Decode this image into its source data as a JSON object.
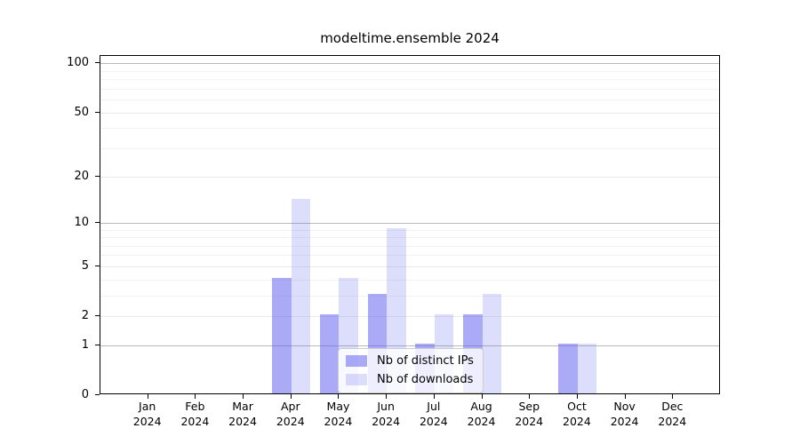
{
  "title": "modeltime.ensemble 2024",
  "colors": {
    "bar_base": "#6464f0",
    "ips_fill": "rgba(100,100,240,0.55)",
    "downloads_fill": "rgba(100,100,240,0.22)",
    "grid_major": "#b9b9b9",
    "grid_sub": "#e9e9e9",
    "grid_minor": "#f2f2f2",
    "spine": "#000000",
    "legend_border": "#cccccc"
  },
  "legend": {
    "items": [
      {
        "label": "Nb of distinct IPs",
        "series": "ips"
      },
      {
        "label": "Nb of downloads",
        "series": "downloads"
      }
    ]
  },
  "chart_data": {
    "type": "bar",
    "title": "modeltime.ensemble 2024",
    "categories": [
      "Jan 2024",
      "Feb 2024",
      "Mar 2024",
      "Apr 2024",
      "May 2024",
      "Jun 2024",
      "Jul 2024",
      "Aug 2024",
      "Sep 2024",
      "Oct 2024",
      "Nov 2024",
      "Dec 2024"
    ],
    "x_ticks": [
      {
        "label": "Jan",
        "year": "2024"
      },
      {
        "label": "Feb",
        "year": "2024"
      },
      {
        "label": "Mar",
        "year": "2024"
      },
      {
        "label": "Apr",
        "year": "2024"
      },
      {
        "label": "May",
        "year": "2024"
      },
      {
        "label": "Jun",
        "year": "2024"
      },
      {
        "label": "Jul",
        "year": "2024"
      },
      {
        "label": "Aug",
        "year": "2024"
      },
      {
        "label": "Sep",
        "year": "2024"
      },
      {
        "label": "Oct",
        "year": "2024"
      },
      {
        "label": "Nov",
        "year": "2024"
      },
      {
        "label": "Dec",
        "year": "2024"
      }
    ],
    "series": [
      {
        "key": "ips",
        "name": "Nb of distinct IPs",
        "values": [
          0,
          0,
          0,
          4,
          2,
          3,
          1,
          2,
          0,
          1,
          0,
          0
        ],
        "color": "rgba(100,100,240,0.55)"
      },
      {
        "key": "downloads",
        "name": "Nb of downloads",
        "values": [
          0,
          0,
          0,
          14,
          4,
          9,
          2,
          3,
          0,
          1,
          0,
          0
        ],
        "color": "rgba(100,100,240,0.22)"
      }
    ],
    "yscale": "log1p",
    "y_ticks": [
      100,
      50,
      20,
      10,
      5,
      2,
      1,
      0
    ],
    "y_major_ticks": [
      1,
      10,
      100
    ],
    "y_minor_ticks": [
      3,
      4,
      6,
      7,
      8,
      9,
      30,
      40,
      60,
      70,
      80,
      90
    ],
    "ylim": [
      0,
      111
    ],
    "xlabel": "",
    "ylabel": "",
    "grid": "horizontal",
    "legend_position": "lower center inside"
  }
}
